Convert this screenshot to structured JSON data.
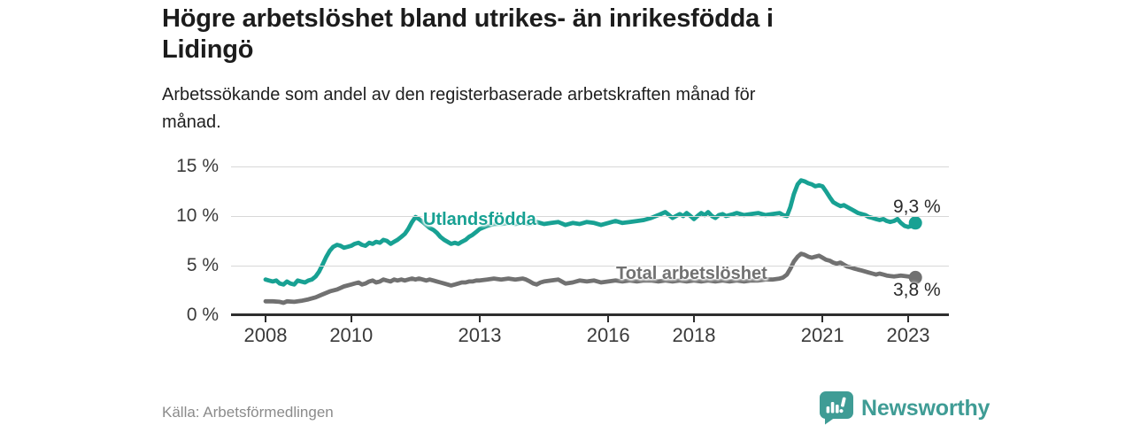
{
  "header": {
    "title": "Högre arbetslöshet bland utrikes- än inrikesfödda i Lidingö",
    "title_lines": [
      "Högre arbetslöshet bland utrikes- än inrikesfödda i",
      "Lidingö"
    ],
    "subtitle": "Arbetssökande som andel av den registerbaserade arbetskraften månad för månad.",
    "subtitle_lines": [
      "Arbetssökande som andel av den registerbaserade arbetskraften månad för",
      "månad."
    ]
  },
  "footer": {
    "source": "Källa: Arbetsförmedlingen",
    "brand": "Newsworthy",
    "brand_color": "#3f9c95"
  },
  "chart_data": {
    "type": "line",
    "x_label": "",
    "y_label": "",
    "xlim": [
      2006.9,
      2023.95
    ],
    "ylim": [
      0,
      15.7
    ],
    "grid": "horizontal",
    "x_ticks": [
      {
        "value": 2008,
        "label": "2008"
      },
      {
        "value": 2010,
        "label": "2010"
      },
      {
        "value": 2013,
        "label": "2013"
      },
      {
        "value": 2016,
        "label": "2016"
      },
      {
        "value": 2018,
        "label": "2018"
      },
      {
        "value": 2021,
        "label": "2021"
      },
      {
        "value": 2023,
        "label": "2023"
      }
    ],
    "y_ticks": [
      {
        "value": 0,
        "label": "0 %"
      },
      {
        "value": 5,
        "label": "5 %"
      },
      {
        "value": 10,
        "label": "10 %"
      },
      {
        "value": 15,
        "label": "15 %"
      }
    ],
    "series": [
      {
        "name": "Utlandsfödda",
        "color": "#18a193",
        "end_label": "9,3 %",
        "end_value": 9.3,
        "points": [
          [
            2008.0,
            3.6
          ],
          [
            2008.08,
            3.5
          ],
          [
            2008.17,
            3.4
          ],
          [
            2008.25,
            3.5
          ],
          [
            2008.33,
            3.2
          ],
          [
            2008.42,
            3.1
          ],
          [
            2008.5,
            3.4
          ],
          [
            2008.58,
            3.2
          ],
          [
            2008.67,
            3.1
          ],
          [
            2008.75,
            3.5
          ],
          [
            2008.83,
            3.4
          ],
          [
            2008.92,
            3.3
          ],
          [
            2009.0,
            3.5
          ],
          [
            2009.08,
            3.6
          ],
          [
            2009.17,
            3.9
          ],
          [
            2009.25,
            4.4
          ],
          [
            2009.33,
            5.1
          ],
          [
            2009.42,
            5.9
          ],
          [
            2009.5,
            6.5
          ],
          [
            2009.58,
            6.9
          ],
          [
            2009.67,
            7.1
          ],
          [
            2009.75,
            7.0
          ],
          [
            2009.83,
            6.8
          ],
          [
            2009.92,
            6.9
          ],
          [
            2010.0,
            7.0
          ],
          [
            2010.08,
            7.2
          ],
          [
            2010.17,
            7.3
          ],
          [
            2010.25,
            7.1
          ],
          [
            2010.33,
            7.0
          ],
          [
            2010.42,
            7.3
          ],
          [
            2010.5,
            7.2
          ],
          [
            2010.58,
            7.4
          ],
          [
            2010.67,
            7.3
          ],
          [
            2010.75,
            7.6
          ],
          [
            2010.83,
            7.5
          ],
          [
            2010.92,
            7.2
          ],
          [
            2011.0,
            7.4
          ],
          [
            2011.08,
            7.6
          ],
          [
            2011.17,
            7.9
          ],
          [
            2011.25,
            8.2
          ],
          [
            2011.33,
            8.7
          ],
          [
            2011.42,
            9.4
          ],
          [
            2011.5,
            9.9
          ],
          [
            2011.58,
            9.7
          ],
          [
            2011.67,
            9.4
          ],
          [
            2011.75,
            9.1
          ],
          [
            2011.83,
            8.8
          ],
          [
            2011.92,
            8.6
          ],
          [
            2012.0,
            8.3
          ],
          [
            2012.08,
            7.9
          ],
          [
            2012.17,
            7.6
          ],
          [
            2012.25,
            7.4
          ],
          [
            2012.33,
            7.2
          ],
          [
            2012.42,
            7.3
          ],
          [
            2012.5,
            7.2
          ],
          [
            2012.58,
            7.4
          ],
          [
            2012.67,
            7.6
          ],
          [
            2012.75,
            7.9
          ],
          [
            2012.83,
            8.1
          ],
          [
            2012.92,
            8.4
          ],
          [
            2013.0,
            8.7
          ],
          [
            2013.17,
            9.0
          ],
          [
            2013.33,
            9.2
          ],
          [
            2013.5,
            9.2
          ],
          [
            2013.67,
            9.3
          ],
          [
            2013.83,
            9.2
          ],
          [
            2014.0,
            9.3
          ],
          [
            2014.17,
            9.2
          ],
          [
            2014.33,
            9.4
          ],
          [
            2014.5,
            9.2
          ],
          [
            2014.67,
            9.3
          ],
          [
            2014.83,
            9.4
          ],
          [
            2015.0,
            9.1
          ],
          [
            2015.17,
            9.3
          ],
          [
            2015.33,
            9.2
          ],
          [
            2015.5,
            9.4
          ],
          [
            2015.67,
            9.3
          ],
          [
            2015.83,
            9.1
          ],
          [
            2016.0,
            9.3
          ],
          [
            2016.17,
            9.5
          ],
          [
            2016.33,
            9.3
          ],
          [
            2016.5,
            9.4
          ],
          [
            2016.67,
            9.5
          ],
          [
            2016.83,
            9.6
          ],
          [
            2017.0,
            9.8
          ],
          [
            2017.17,
            10.1
          ],
          [
            2017.33,
            10.4
          ],
          [
            2017.42,
            10.1
          ],
          [
            2017.5,
            9.8
          ],
          [
            2017.58,
            10.0
          ],
          [
            2017.67,
            10.2
          ],
          [
            2017.75,
            10.0
          ],
          [
            2017.83,
            10.3
          ],
          [
            2017.92,
            10.0
          ],
          [
            2018.0,
            9.7
          ],
          [
            2018.08,
            10.0
          ],
          [
            2018.17,
            10.3
          ],
          [
            2018.25,
            10.1
          ],
          [
            2018.33,
            10.4
          ],
          [
            2018.42,
            10.0
          ],
          [
            2018.5,
            9.8
          ],
          [
            2018.58,
            10.1
          ],
          [
            2018.67,
            10.2
          ],
          [
            2018.75,
            10.0
          ],
          [
            2018.83,
            10.1
          ],
          [
            2018.92,
            10.2
          ],
          [
            2019.0,
            10.3
          ],
          [
            2019.17,
            10.1
          ],
          [
            2019.33,
            10.2
          ],
          [
            2019.5,
            10.3
          ],
          [
            2019.67,
            10.1
          ],
          [
            2019.83,
            10.2
          ],
          [
            2020.0,
            10.3
          ],
          [
            2020.08,
            10.1
          ],
          [
            2020.17,
            10.0
          ],
          [
            2020.25,
            10.9
          ],
          [
            2020.33,
            12.2
          ],
          [
            2020.42,
            13.2
          ],
          [
            2020.5,
            13.6
          ],
          [
            2020.58,
            13.5
          ],
          [
            2020.67,
            13.3
          ],
          [
            2020.75,
            13.2
          ],
          [
            2020.83,
            13.0
          ],
          [
            2020.92,
            13.1
          ],
          [
            2021.0,
            13.0
          ],
          [
            2021.08,
            12.5
          ],
          [
            2021.17,
            11.9
          ],
          [
            2021.25,
            11.4
          ],
          [
            2021.33,
            11.2
          ],
          [
            2021.42,
            11.0
          ],
          [
            2021.5,
            11.1
          ],
          [
            2021.58,
            10.9
          ],
          [
            2021.67,
            10.7
          ],
          [
            2021.75,
            10.5
          ],
          [
            2021.83,
            10.3
          ],
          [
            2021.92,
            10.2
          ],
          [
            2022.0,
            10.1
          ],
          [
            2022.08,
            9.9
          ],
          [
            2022.17,
            9.8
          ],
          [
            2022.25,
            9.7
          ],
          [
            2022.33,
            9.6
          ],
          [
            2022.42,
            9.7
          ],
          [
            2022.5,
            9.5
          ],
          [
            2022.58,
            9.4
          ],
          [
            2022.67,
            9.5
          ],
          [
            2022.75,
            9.7
          ],
          [
            2022.83,
            9.3
          ],
          [
            2022.92,
            9.0
          ],
          [
            2023.0,
            8.9
          ],
          [
            2023.08,
            9.0
          ],
          [
            2023.17,
            9.3
          ]
        ]
      },
      {
        "name": "Total arbetslöshet",
        "color": "#717171",
        "end_label": "3,8 %",
        "end_value": 3.8,
        "points": [
          [
            2008.0,
            1.4
          ],
          [
            2008.17,
            1.4
          ],
          [
            2008.33,
            1.35
          ],
          [
            2008.42,
            1.25
          ],
          [
            2008.5,
            1.4
          ],
          [
            2008.67,
            1.35
          ],
          [
            2008.83,
            1.45
          ],
          [
            2009.0,
            1.6
          ],
          [
            2009.17,
            1.8
          ],
          [
            2009.33,
            2.1
          ],
          [
            2009.5,
            2.4
          ],
          [
            2009.67,
            2.6
          ],
          [
            2009.83,
            2.9
          ],
          [
            2010.0,
            3.1
          ],
          [
            2010.08,
            3.2
          ],
          [
            2010.17,
            3.3
          ],
          [
            2010.25,
            3.1
          ],
          [
            2010.33,
            3.2
          ],
          [
            2010.42,
            3.4
          ],
          [
            2010.5,
            3.5
          ],
          [
            2010.58,
            3.3
          ],
          [
            2010.67,
            3.4
          ],
          [
            2010.75,
            3.6
          ],
          [
            2010.83,
            3.5
          ],
          [
            2010.92,
            3.4
          ],
          [
            2011.0,
            3.6
          ],
          [
            2011.08,
            3.5
          ],
          [
            2011.17,
            3.6
          ],
          [
            2011.25,
            3.5
          ],
          [
            2011.33,
            3.6
          ],
          [
            2011.42,
            3.7
          ],
          [
            2011.5,
            3.6
          ],
          [
            2011.58,
            3.7
          ],
          [
            2011.67,
            3.6
          ],
          [
            2011.75,
            3.5
          ],
          [
            2011.83,
            3.6
          ],
          [
            2011.92,
            3.5
          ],
          [
            2012.0,
            3.4
          ],
          [
            2012.08,
            3.3
          ],
          [
            2012.17,
            3.2
          ],
          [
            2012.25,
            3.1
          ],
          [
            2012.33,
            3.0
          ],
          [
            2012.42,
            3.1
          ],
          [
            2012.5,
            3.2
          ],
          [
            2012.58,
            3.3
          ],
          [
            2012.67,
            3.3
          ],
          [
            2012.75,
            3.4
          ],
          [
            2012.83,
            3.4
          ],
          [
            2012.92,
            3.5
          ],
          [
            2013.0,
            3.5
          ],
          [
            2013.17,
            3.6
          ],
          [
            2013.33,
            3.7
          ],
          [
            2013.5,
            3.6
          ],
          [
            2013.67,
            3.7
          ],
          [
            2013.83,
            3.6
          ],
          [
            2014.0,
            3.7
          ],
          [
            2014.08,
            3.6
          ],
          [
            2014.17,
            3.4
          ],
          [
            2014.25,
            3.2
          ],
          [
            2014.33,
            3.1
          ],
          [
            2014.42,
            3.3
          ],
          [
            2014.5,
            3.4
          ],
          [
            2014.67,
            3.5
          ],
          [
            2014.83,
            3.6
          ],
          [
            2015.0,
            3.2
          ],
          [
            2015.17,
            3.3
          ],
          [
            2015.33,
            3.5
          ],
          [
            2015.5,
            3.4
          ],
          [
            2015.67,
            3.5
          ],
          [
            2015.83,
            3.3
          ],
          [
            2016.0,
            3.4
          ],
          [
            2016.17,
            3.5
          ],
          [
            2016.33,
            3.4
          ],
          [
            2016.5,
            3.5
          ],
          [
            2016.67,
            3.4
          ],
          [
            2016.83,
            3.5
          ],
          [
            2017.0,
            3.5
          ],
          [
            2017.17,
            3.4
          ],
          [
            2017.33,
            3.5
          ],
          [
            2017.5,
            3.4
          ],
          [
            2017.67,
            3.5
          ],
          [
            2017.83,
            3.4
          ],
          [
            2018.0,
            3.5
          ],
          [
            2018.17,
            3.4
          ],
          [
            2018.33,
            3.5
          ],
          [
            2018.5,
            3.4
          ],
          [
            2018.67,
            3.5
          ],
          [
            2018.83,
            3.4
          ],
          [
            2019.0,
            3.5
          ],
          [
            2019.17,
            3.4
          ],
          [
            2019.33,
            3.5
          ],
          [
            2019.5,
            3.5
          ],
          [
            2019.67,
            3.6
          ],
          [
            2019.83,
            3.6
          ],
          [
            2020.0,
            3.7
          ],
          [
            2020.08,
            3.8
          ],
          [
            2020.17,
            4.1
          ],
          [
            2020.25,
            4.7
          ],
          [
            2020.33,
            5.4
          ],
          [
            2020.42,
            5.9
          ],
          [
            2020.5,
            6.2
          ],
          [
            2020.58,
            6.1
          ],
          [
            2020.67,
            5.9
          ],
          [
            2020.75,
            5.8
          ],
          [
            2020.83,
            5.9
          ],
          [
            2020.92,
            6.0
          ],
          [
            2021.0,
            5.8
          ],
          [
            2021.08,
            5.6
          ],
          [
            2021.17,
            5.5
          ],
          [
            2021.25,
            5.3
          ],
          [
            2021.33,
            5.2
          ],
          [
            2021.42,
            5.3
          ],
          [
            2021.5,
            5.1
          ],
          [
            2021.58,
            4.9
          ],
          [
            2021.67,
            4.8
          ],
          [
            2021.75,
            4.7
          ],
          [
            2021.83,
            4.6
          ],
          [
            2021.92,
            4.5
          ],
          [
            2022.0,
            4.4
          ],
          [
            2022.08,
            4.3
          ],
          [
            2022.17,
            4.2
          ],
          [
            2022.25,
            4.1
          ],
          [
            2022.33,
            4.2
          ],
          [
            2022.42,
            4.1
          ],
          [
            2022.5,
            4.0
          ],
          [
            2022.58,
            3.95
          ],
          [
            2022.67,
            3.9
          ],
          [
            2022.75,
            3.95
          ],
          [
            2022.83,
            4.0
          ],
          [
            2022.92,
            3.95
          ],
          [
            2023.0,
            3.9
          ],
          [
            2023.08,
            3.85
          ],
          [
            2023.17,
            3.8
          ]
        ]
      }
    ]
  }
}
